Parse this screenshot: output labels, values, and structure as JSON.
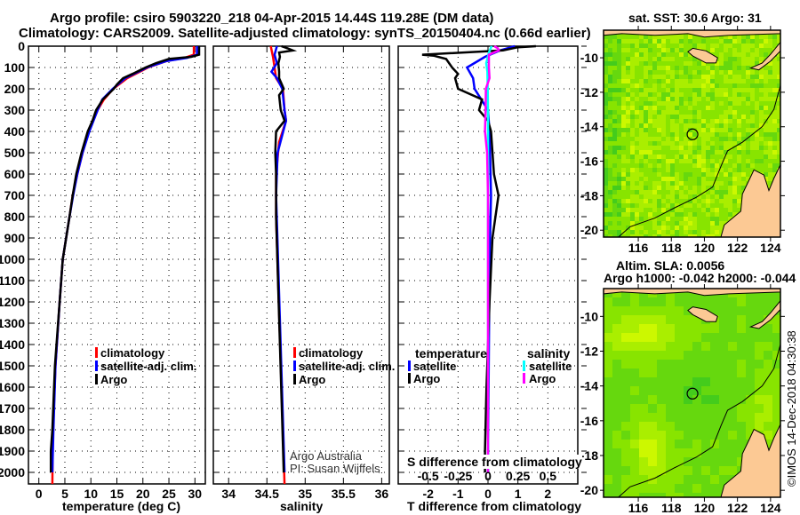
{
  "header": {
    "title_line1": "Argo profile: csiro 5903220_218 04-Apr-2015 14.44S 119.28E (DM data)",
    "title_line2": "Climatology: CARS2009. Satellite-adjusted climatology: synTS_20150404.nc (0.66d earlier)"
  },
  "colors": {
    "climatology": "#ff0000",
    "satellite": "#0000ff",
    "argo": "#000000",
    "sat_salinity": "#00ffff",
    "argo_salinity": "#ff00ff",
    "land": "#fcc994"
  },
  "watermark": {
    "line1": "Argo Australia",
    "line2": "PI: Susan Wijffels"
  },
  "copyright": "©IMOS 14-Dec-2018 04:30:38",
  "chart_data": [
    {
      "type": "line",
      "id": "temperature",
      "xlabel": "temperature (deg C)",
      "ylabel": "",
      "xlim": [
        -2,
        32
      ],
      "ylim": [
        2054,
        0
      ],
      "xticks": [
        0,
        5,
        10,
        15,
        20,
        25,
        30
      ],
      "yticks": [
        0,
        100,
        200,
        300,
        400,
        500,
        600,
        700,
        800,
        900,
        1000,
        1100,
        1200,
        1300,
        1400,
        1500,
        1600,
        1700,
        1800,
        1900,
        2000
      ],
      "grid": true,
      "legend": [
        "climatology",
        "satellite-adj. clim.",
        "Argo"
      ],
      "series": [
        {
          "name": "climatology",
          "color": "#ff0000",
          "depth": [
            0,
            40,
            55,
            70,
            100,
            150,
            200,
            250,
            300,
            400,
            500,
            600,
            700,
            800,
            1000,
            1200,
            1500,
            1800,
            2054
          ],
          "values": [
            29.8,
            29.8,
            28,
            24.5,
            21,
            17,
            14.3,
            12.5,
            11.3,
            9.6,
            8.4,
            7.4,
            6.5,
            5.9,
            4.6,
            4,
            3.2,
            2.7,
            2.6
          ]
        },
        {
          "name": "satellite-adj. clim.",
          "color": "#0000ff",
          "depth": [
            0,
            40,
            55,
            70,
            100,
            150,
            200,
            250,
            300,
            400,
            500,
            600,
            700,
            800,
            1000,
            1200,
            1500,
            1800,
            2000
          ],
          "values": [
            30.4,
            30.4,
            28.5,
            24.5,
            20.8,
            16.6,
            14.2,
            12.2,
            11.3,
            9.7,
            8.4,
            7.4,
            6.6,
            5.9,
            4.6,
            4,
            3.2,
            2.8,
            2.6
          ]
        },
        {
          "name": "Argo",
          "color": "#000000",
          "depth": [
            0,
            40,
            50,
            60,
            80,
            100,
            130,
            150,
            180,
            200,
            250,
            300,
            350,
            400,
            500,
            600,
            700,
            800,
            1000,
            1200,
            1500,
            1800,
            1900,
            2000
          ],
          "values": [
            30.8,
            30.8,
            29.3,
            25,
            22.5,
            20.5,
            18,
            16.2,
            15,
            14.4,
            12.3,
            11,
            10.3,
            9.4,
            8.2,
            7.2,
            6.5,
            5.9,
            4.6,
            4,
            3.1,
            2.6,
            2.3,
            2.3
          ]
        }
      ]
    },
    {
      "type": "line",
      "id": "salinity",
      "xlabel": "salinity",
      "xlim": [
        33.8,
        36.1
      ],
      "ylim": [
        2054,
        0
      ],
      "xticks": [
        34,
        34.5,
        35,
        35.5,
        36
      ],
      "grid": true,
      "legend": [
        "climatology",
        "satellite-adj. clim.",
        "Argo"
      ],
      "series": [
        {
          "name": "climatology",
          "color": "#ff0000",
          "depth": [
            0,
            50,
            100,
            150,
            200,
            300,
            350,
            450,
            600,
            800,
            2054
          ],
          "values": [
            34.55,
            34.58,
            34.6,
            34.62,
            34.71,
            34.73,
            34.75,
            34.66,
            34.62,
            34.62,
            34.73
          ]
        },
        {
          "name": "satellite-adj. clim.",
          "color": "#0000ff",
          "depth": [
            0,
            40,
            80,
            120,
            150,
            200,
            300,
            350,
            500,
            700,
            2000
          ],
          "values": [
            34.63,
            34.6,
            34.63,
            34.56,
            34.63,
            34.7,
            34.73,
            34.75,
            34.64,
            34.62,
            34.73
          ]
        },
        {
          "name": "Argo",
          "color": "#000000",
          "depth": [
            0,
            10,
            20,
            30,
            50,
            80,
            120,
            150,
            200,
            230,
            300,
            350,
            400,
            500,
            600,
            800,
            2000
          ],
          "values": [
            34.69,
            34.77,
            34.84,
            34.66,
            34.67,
            34.65,
            34.66,
            34.66,
            34.72,
            34.66,
            34.68,
            34.73,
            34.62,
            34.61,
            34.62,
            34.62,
            34.72
          ]
        }
      ]
    },
    {
      "type": "line",
      "id": "difference",
      "xlabel": "T difference from climatology",
      "xlabel2": "S difference from climatology",
      "xlim": [
        -3,
        3
      ],
      "ylim": [
        2054,
        0
      ],
      "xticks": [
        -2,
        -1,
        0,
        1,
        2
      ],
      "xticks_s": [
        "-0.5",
        "-0.25",
        "0",
        "0.25",
        "0.5"
      ],
      "grid": true,
      "legend_t_title": "temperature",
      "legend_s_title": "salinity",
      "legend": [
        "satellite",
        "Argo"
      ],
      "series": [
        {
          "name": "T satellite",
          "color": "#0000ff",
          "depth": [
            0,
            20,
            50,
            100,
            150,
            200,
            300,
            400,
            700,
            1000,
            2000
          ],
          "values": [
            0.9,
            0.4,
            -0.1,
            -0.7,
            -0.5,
            -0.45,
            0,
            0.05,
            0.1,
            0.05,
            0.0
          ]
        },
        {
          "name": "T Argo",
          "color": "#000000",
          "depth": [
            0,
            5,
            20,
            40,
            45,
            60,
            100,
            130,
            150,
            200,
            250,
            300,
            350,
            400,
            600,
            700,
            900,
            1200,
            1600,
            1900,
            2000
          ],
          "values": [
            1.6,
            1.0,
            0.5,
            -2.2,
            -1.8,
            -1.4,
            -1.2,
            -1.0,
            -1.1,
            -1.0,
            -0.2,
            -0.3,
            0.0,
            0.1,
            0.2,
            0.35,
            0.15,
            0.05,
            -0.05,
            -0.1,
            -0.1
          ]
        },
        {
          "name": "S satellite",
          "color": "#00ffff",
          "depth": [
            0,
            30,
            80,
            120,
            200,
            300,
            500,
            1000,
            2000
          ],
          "values": [
            0.12,
            0.03,
            -0.06,
            -0.02,
            -0.01,
            0.0,
            0.0,
            0.0,
            0.01
          ]
        },
        {
          "name": "S Argo",
          "color": "#ff00ff",
          "depth": [
            0,
            10,
            20,
            40,
            100,
            150,
            200,
            300,
            400,
            500,
            700,
            1500,
            2000
          ],
          "values": [
            0.21,
            0.33,
            0.36,
            0.03,
            0.03,
            0.05,
            -0.07,
            -0.08,
            -0.1,
            -0.03,
            0.0,
            0.0,
            0.0
          ]
        }
      ]
    },
    {
      "type": "heatmap",
      "id": "sst-map",
      "title": "sat. SST: 30.6 Argo: 31",
      "lon_ticks": [
        116,
        118,
        120,
        122,
        124
      ],
      "lat_ticks": [
        -10,
        -12,
        -14,
        -16,
        -18,
        -20
      ],
      "lon_range": [
        113.9,
        124.6
      ],
      "lat_range": [
        -20.4,
        -8.4
      ],
      "float_position": {
        "lon": 119.28,
        "lat": -14.44
      }
    },
    {
      "type": "heatmap",
      "id": "sla-map",
      "title": "Altim. SLA: 0.0056",
      "subtitle": "Argo h1000: -0.042 h2000: -0.044",
      "lon_ticks": [
        116,
        118,
        120,
        122,
        124
      ],
      "lat_ticks": [
        -10,
        -12,
        -14,
        -16,
        -18,
        -20
      ],
      "lon_range": [
        113.9,
        124.6
      ],
      "lat_range": [
        -20.4,
        -8.4
      ],
      "float_position": {
        "lon": 119.28,
        "lat": -14.44
      }
    }
  ]
}
